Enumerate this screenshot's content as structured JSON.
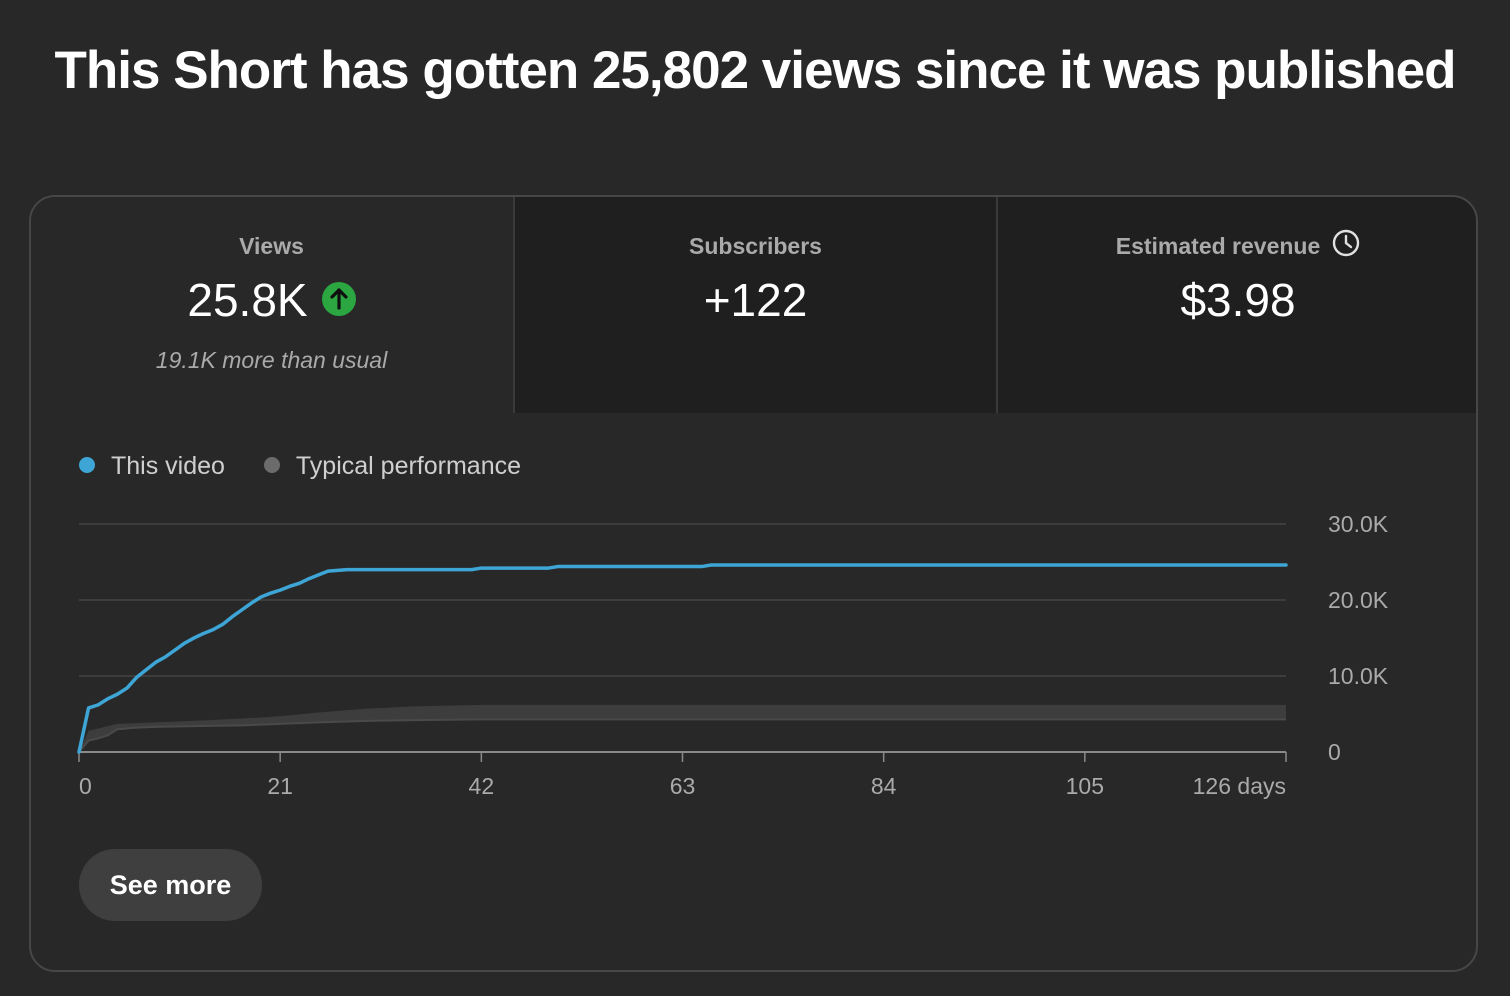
{
  "headline": "This Short has gotten 25,802 views since it was published",
  "metrics": [
    {
      "label": "Views",
      "value": "25.8K",
      "sub": "19.1K more than usual",
      "icon": "arrow-up-circle-icon",
      "icon_color": "#2ba640"
    },
    {
      "label": "Subscribers",
      "value": "+122"
    },
    {
      "label": "Estimated revenue",
      "value": "$3.98",
      "icon": "clock-icon"
    }
  ],
  "legend": [
    {
      "label": "This video",
      "color": "#3ea6d6"
    },
    {
      "label": "Typical performance",
      "color": "#6b6b6b"
    }
  ],
  "see_more_label": "See more",
  "chart_data": {
    "type": "line",
    "title": "",
    "xlabel": "",
    "ylabel": "",
    "xlim": [
      0,
      126
    ],
    "ylim": [
      0,
      30000
    ],
    "x_ticks": [
      0,
      21,
      42,
      63,
      84,
      105,
      126
    ],
    "x_tick_labels": [
      "0",
      "21",
      "42",
      "63",
      "84",
      "105",
      "126 days"
    ],
    "y_ticks": [
      0,
      10000,
      20000,
      30000
    ],
    "y_tick_labels": [
      "0",
      "10.0K",
      "20.0K",
      "30.0K"
    ],
    "y_axis_position": "right",
    "grid": true,
    "series": [
      {
        "name": "This video",
        "color": "#3ea6d6",
        "points": [
          [
            0,
            0
          ],
          [
            1,
            5800
          ],
          [
            2,
            6200
          ],
          [
            3,
            7000
          ],
          [
            4,
            7600
          ],
          [
            5,
            8400
          ],
          [
            6,
            9800
          ],
          [
            7,
            10800
          ],
          [
            8,
            11800
          ],
          [
            9,
            12500
          ],
          [
            10,
            13400
          ],
          [
            11,
            14300
          ],
          [
            12,
            15000
          ],
          [
            13,
            15600
          ],
          [
            14,
            16100
          ],
          [
            15,
            16800
          ],
          [
            16,
            17800
          ],
          [
            17,
            18700
          ],
          [
            18,
            19600
          ],
          [
            19,
            20400
          ],
          [
            20,
            20900
          ],
          [
            21,
            21300
          ],
          [
            22,
            21800
          ],
          [
            23,
            22200
          ],
          [
            24,
            22800
          ],
          [
            25,
            23300
          ],
          [
            26,
            23800
          ],
          [
            28,
            24000
          ],
          [
            35,
            24000
          ],
          [
            41,
            24000
          ],
          [
            42,
            24200
          ],
          [
            49,
            24200
          ],
          [
            50,
            24400
          ],
          [
            65,
            24400
          ],
          [
            66,
            24600
          ],
          [
            126,
            24600
          ]
        ]
      },
      {
        "name": "Typical performance",
        "color": "#6b6b6b",
        "type": "band",
        "points": [
          [
            0,
            0,
            0
          ],
          [
            1,
            1500,
            2800
          ],
          [
            2,
            1800,
            3100
          ],
          [
            3,
            2200,
            3400
          ],
          [
            4,
            3000,
            3700
          ],
          [
            6,
            3200,
            3800
          ],
          [
            8,
            3300,
            3900
          ],
          [
            12,
            3400,
            4100
          ],
          [
            17,
            3500,
            4400
          ],
          [
            21,
            3700,
            4700
          ],
          [
            25,
            3900,
            5200
          ],
          [
            30,
            4100,
            5700
          ],
          [
            35,
            4200,
            6000
          ],
          [
            42,
            4300,
            6200
          ],
          [
            60,
            4300,
            6200
          ],
          [
            80,
            4300,
            6200
          ],
          [
            126,
            4300,
            6200
          ]
        ]
      }
    ]
  }
}
